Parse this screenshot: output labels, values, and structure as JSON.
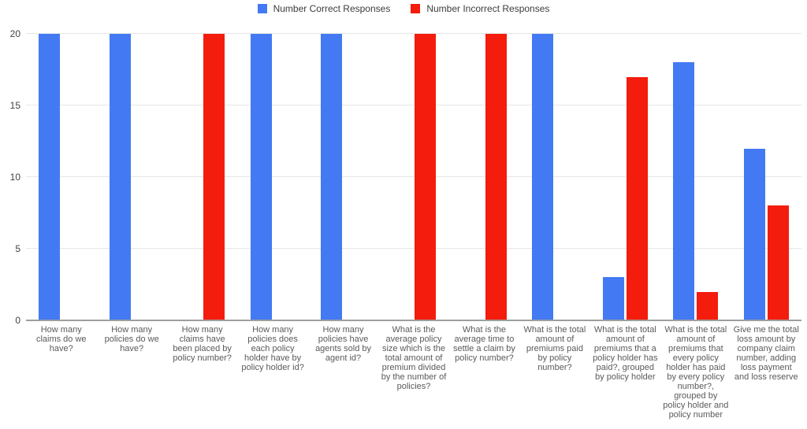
{
  "chart_data": {
    "type": "bar",
    "title": "",
    "xlabel": "",
    "ylabel": "",
    "ylim": [
      0,
      20
    ],
    "yticks": [
      0,
      5,
      10,
      15,
      20
    ],
    "grid": true,
    "legend_position": "top",
    "categories": [
      "How many claims do we have?",
      "How many policies do we have?",
      "How many claims have been placed by policy number?",
      "How many policies does each policy holder have by policy holder id?",
      "How many policies have agents sold by agent id?",
      "What is the average policy size which is the total amount of premium divided by the number of policies?",
      "What is the average time to settle a claim by policy number?",
      "What is the total amount of premiums paid by policy number?",
      "What is the total amount of premiums that a policy holder has paid?, grouped by policy holder",
      "What is the total amount of premiums that every policy holder has paid by every policy number?, grouped by policy holder and policy number",
      "Give me the total loss amount by company claim number, adding loss payment and loss reserve"
    ],
    "series": [
      {
        "name": "Number Correct Responses",
        "color": "#4379f2",
        "values": [
          20,
          20,
          0,
          20,
          20,
          0,
          0,
          20,
          3,
          18,
          12
        ]
      },
      {
        "name": "Number Incorrect Responses",
        "color": "#f41c0c",
        "values": [
          0,
          0,
          20,
          0,
          0,
          20,
          20,
          0,
          17,
          2,
          8
        ]
      }
    ],
    "colors": {
      "gridline": "#e6e6e6",
      "axis_line": "#9e9e9e",
      "tick_label": "#424242",
      "category_label": "#5a5a5a",
      "legend_label": "#3c3c3c"
    }
  }
}
